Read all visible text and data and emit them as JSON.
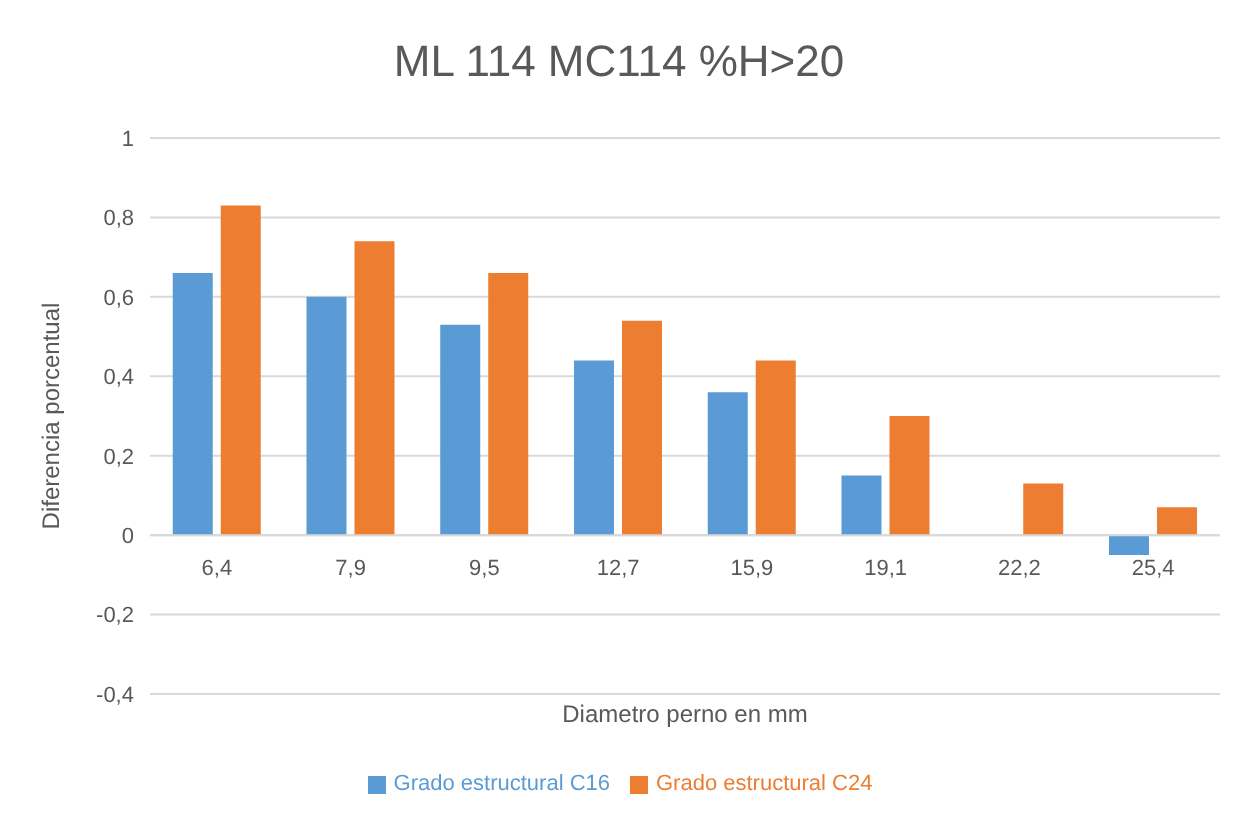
{
  "chart_data": {
    "type": "bar",
    "title": "ML 114 MC114 %H>20",
    "xlabel": "Diametro perno en mm",
    "ylabel": "Diferencia porcentual",
    "categories": [
      "6,4",
      "7,9",
      "9,5",
      "12,7",
      "15,9",
      "19,1",
      "22,2",
      "25,4"
    ],
    "series": [
      {
        "name": "Grado estructural C16",
        "color": "#5b9bd5",
        "values": [
          0.66,
          0.6,
          0.53,
          0.44,
          0.36,
          0.15,
          0,
          -0.05
        ]
      },
      {
        "name": "Grado estructural C24",
        "color": "#ed7d31",
        "values": [
          0.83,
          0.74,
          0.66,
          0.54,
          0.44,
          0.3,
          0.13,
          0.07
        ]
      }
    ],
    "ylim": [
      -0.4,
      1
    ],
    "yticks": [
      {
        "value": -0.4,
        "label": "-0,4"
      },
      {
        "value": -0.2,
        "label": "-0,2"
      },
      0,
      {
        "value": 0.2,
        "label": "0,2"
      },
      {
        "value": 0.4,
        "label": "0,4"
      },
      {
        "value": 0.6,
        "label": "0,6"
      },
      {
        "value": 0.8,
        "label": "0,8"
      },
      1
    ],
    "grid": "y",
    "legend": "bottom"
  }
}
